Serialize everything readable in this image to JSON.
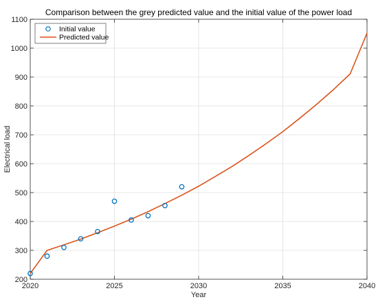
{
  "chart_data": {
    "type": "line",
    "title": "Comparison between the grey predicted value and the initial value of the power load",
    "xlabel": "Year",
    "ylabel": "Electrical load",
    "xlim": [
      2020,
      2040
    ],
    "ylim": [
      200,
      1100
    ],
    "xticks": [
      2020,
      2025,
      2030,
      2035,
      2040
    ],
    "yticks": [
      200,
      300,
      400,
      500,
      600,
      700,
      800,
      900,
      1000,
      1100
    ],
    "grid": true,
    "legend_position": "top-left",
    "series": [
      {
        "name": "Initial value",
        "kind": "scatter",
        "marker": "circle-open",
        "color": "#0072bd",
        "x": [
          2020,
          2021,
          2022,
          2023,
          2024,
          2025,
          2026,
          2027,
          2028,
          2029
        ],
        "y": [
          220,
          280,
          310,
          340,
          365,
          470,
          405,
          420,
          455,
          520
        ]
      },
      {
        "name": "Predicted value",
        "kind": "line",
        "color": "#d95319",
        "x": [
          2020,
          2021,
          2022,
          2023,
          2024,
          2025,
          2026,
          2027,
          2028,
          2029,
          2030,
          2031,
          2032,
          2033,
          2034,
          2035,
          2036,
          2037,
          2038,
          2039,
          2040
        ],
        "y": [
          220,
          300,
          319,
          339,
          361,
          384,
          408,
          434,
          462,
          491,
          522,
          556,
          591,
          629,
          669,
          711,
          757,
          805,
          856,
          911,
          1052
        ]
      }
    ]
  }
}
